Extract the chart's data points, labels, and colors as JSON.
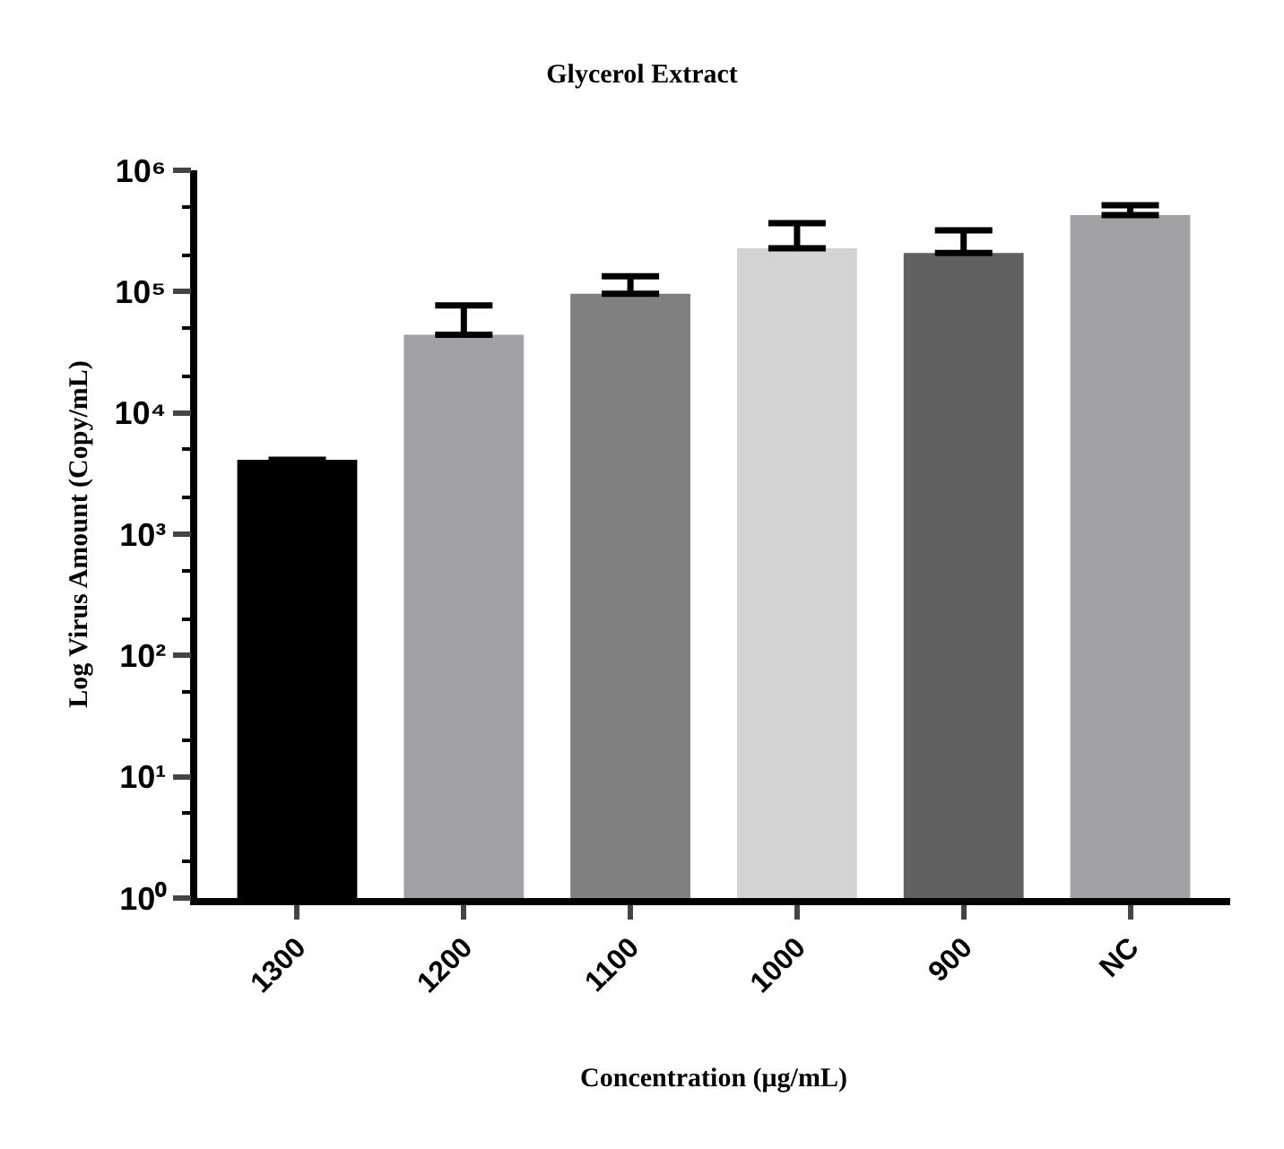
{
  "chart_data": {
    "type": "bar",
    "title": "Glycerol Extract",
    "xlabel": "Concentration (μg/mL)",
    "ylabel": "Log Virus Amount (Copy/mL)",
    "categories": [
      "1300",
      "1200",
      "1100",
      "1000",
      "900",
      "NC"
    ],
    "values": [
      4100,
      44000,
      96000,
      228000,
      208000,
      427000
    ],
    "colors": [
      "#000000",
      "#a2a1a6",
      "#808080",
      "#d3d3d3",
      "#606060",
      "#a2a1a6"
    ],
    "errors": [
      null,
      [
        44000,
        77000
      ],
      [
        96000,
        134000
      ],
      [
        228000,
        367000
      ],
      [
        208000,
        320000
      ],
      [
        427000,
        516000
      ]
    ],
    "log": true,
    "ylim": [
      1,
      1000000
    ],
    "yticks": [
      {
        "value": 1,
        "label": "10⁰"
      },
      {
        "value": 10,
        "label": "10¹"
      },
      {
        "value": 100,
        "label": "10²"
      },
      {
        "value": 1000,
        "label": "10³"
      },
      {
        "value": 10000,
        "label": "10⁴"
      },
      {
        "value": 100000,
        "label": "10⁵"
      },
      {
        "value": 1000000,
        "label": "10⁶"
      }
    ]
  }
}
